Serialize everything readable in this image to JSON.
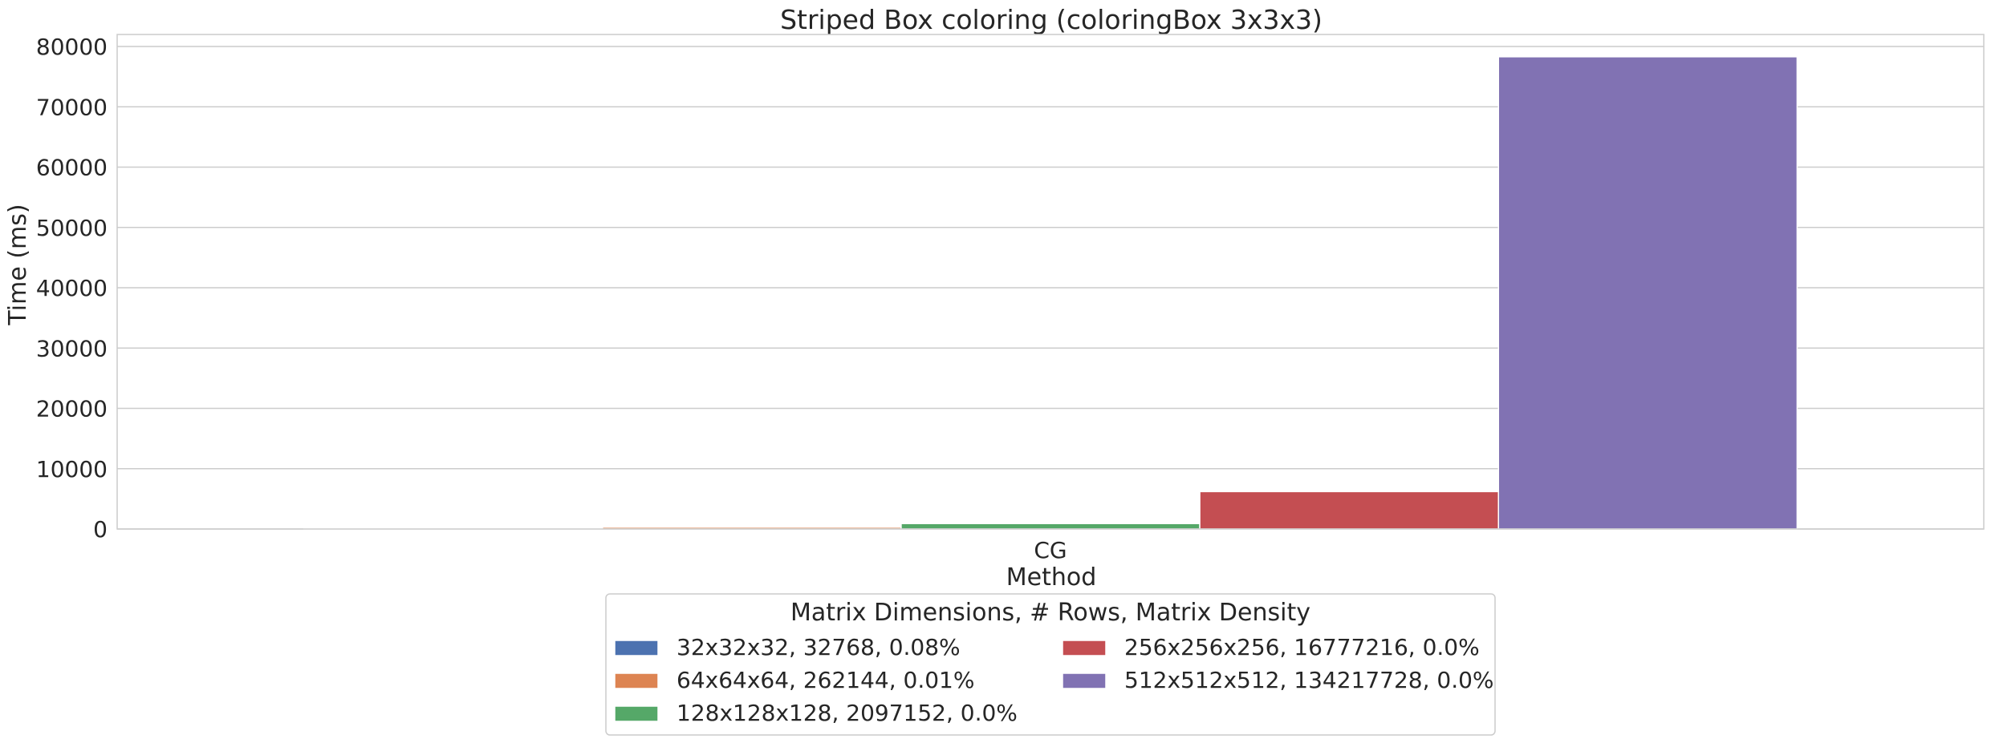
{
  "chart_data": {
    "type": "bar",
    "title": "Striped Box coloring (coloringBox 3x3x3)",
    "xlabel": "Method",
    "ylabel": "Time (ms)",
    "categories": [
      "CG"
    ],
    "ylim": [
      0,
      82000
    ],
    "yticks": [
      0,
      10000,
      20000,
      30000,
      40000,
      50000,
      60000,
      70000,
      80000
    ],
    "grid": true,
    "legend": {
      "title": "Matrix Dimensions, # Rows, Matrix Density",
      "placement": "bottom-center",
      "columns": 2
    },
    "series": [
      {
        "name": "32x32x32, 32768, 0.08%",
        "color": "#4c72b0",
        "values": [
          30
        ]
      },
      {
        "name": "64x64x64, 262144, 0.01%",
        "color": "#dd8452",
        "values": [
          300
        ]
      },
      {
        "name": "128x128x128, 2097152, 0.0%",
        "color": "#55a868",
        "values": [
          900
        ]
      },
      {
        "name": "256x256x256, 16777216, 0.0%",
        "color": "#c44e52",
        "values": [
          6200
        ]
      },
      {
        "name": "512x512x512, 134217728, 0.0%",
        "color": "#8172b3",
        "values": [
          78300
        ]
      }
    ]
  }
}
